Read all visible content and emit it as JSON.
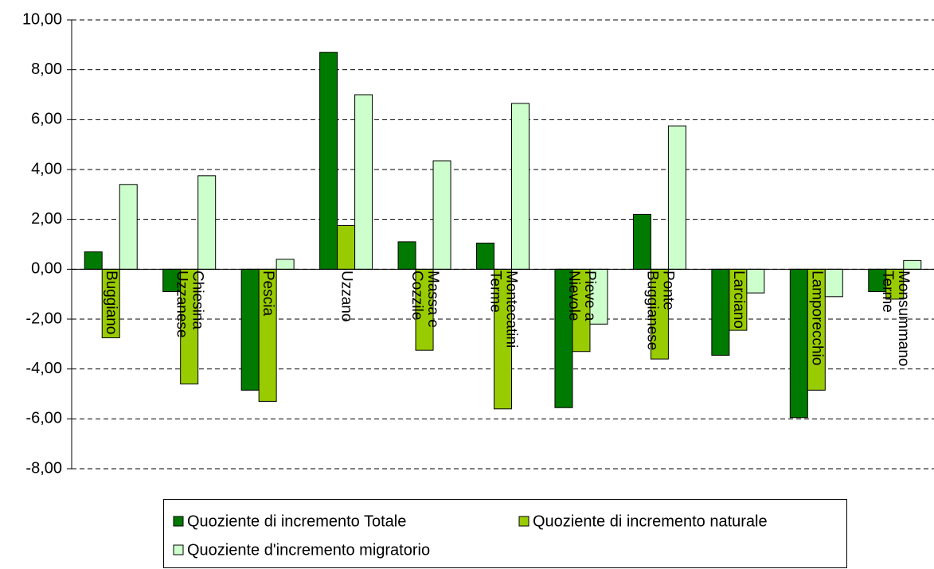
{
  "chart_data": {
    "type": "bar",
    "categories": [
      "Buggiano",
      "Chiesina Uzzanese",
      "Pescia",
      "Uzzano",
      "Massa e Cozzile",
      "Montecatini Terme",
      "Pieve a Nievole",
      "Ponte Buggianese",
      "Larciano",
      "Lamporecchio",
      "Monsummano Terme"
    ],
    "series": [
      {
        "name": "Quoziente di incremento Totale",
        "color": "#007a00",
        "values": [
          0.7,
          -0.9,
          -4.85,
          8.7,
          1.1,
          1.05,
          -5.55,
          2.2,
          -3.45,
          -5.95,
          -0.9
        ]
      },
      {
        "name": "Quoziente di incremento naturale",
        "color": "#99cc00",
        "values": [
          -2.75,
          -4.6,
          -5.3,
          1.75,
          -3.25,
          -5.6,
          -3.3,
          -3.6,
          -2.45,
          -4.85,
          -1.2
        ]
      },
      {
        "name": "Quoziente d'incremento migratorio",
        "color": "#ccffcc",
        "values": [
          3.4,
          3.75,
          0.4,
          7.0,
          4.35,
          6.65,
          -2.2,
          5.75,
          -0.95,
          -1.1,
          0.35
        ]
      }
    ],
    "ylim": [
      -8,
      10
    ],
    "yticks": [
      {
        "value": -8,
        "label": "-8,00"
      },
      {
        "value": -6,
        "label": "-6,00"
      },
      {
        "value": -4,
        "label": "-4,00"
      },
      {
        "value": -2,
        "label": "-2,00"
      },
      {
        "value": 0,
        "label": "0,00"
      },
      {
        "value": 2,
        "label": "2,00"
      },
      {
        "value": 4,
        "label": "4,00"
      },
      {
        "value": 6,
        "label": "6,00"
      },
      {
        "value": 8,
        "label": "8,00"
      },
      {
        "value": 10,
        "label": "10,00"
      }
    ],
    "grid": true,
    "legend": "bottom"
  }
}
